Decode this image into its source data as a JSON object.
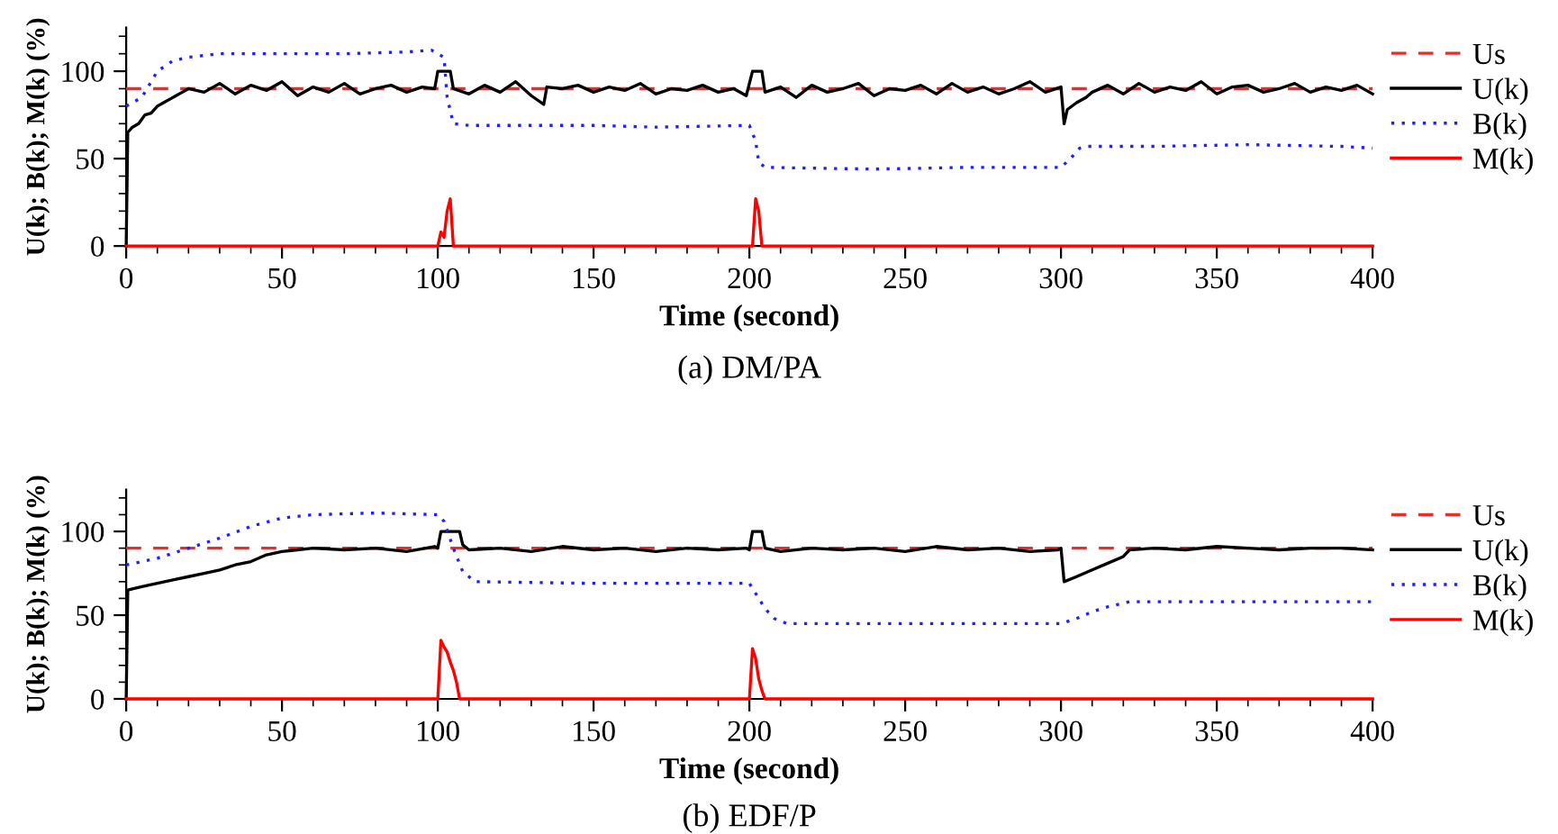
{
  "chart_data": [
    {
      "type": "line",
      "xlabel": "Time (second)",
      "ylabel": "U(k); B(k); M(k) (%)",
      "annotations": [
        "(a) DM/PA"
      ],
      "xlim": [
        0,
        400
      ],
      "ylim": [
        0,
        125
      ],
      "xticks": [
        0,
        {
          "value": 10,
          "label": null
        },
        {
          "value": 20,
          "label": null
        },
        {
          "value": 30,
          "label": null
        },
        {
          "value": 40,
          "label": null
        },
        50,
        {
          "value": 60,
          "label": null
        },
        {
          "value": 70,
          "label": null
        },
        {
          "value": 80,
          "label": null
        },
        {
          "value": 90,
          "label": null
        },
        100,
        {
          "value": 110,
          "label": null
        },
        {
          "value": 120,
          "label": null
        },
        {
          "value": 130,
          "label": null
        },
        {
          "value": 140,
          "label": null
        },
        150,
        {
          "value": 160,
          "label": null
        },
        {
          "value": 170,
          "label": null
        },
        {
          "value": 180,
          "label": null
        },
        {
          "value": 190,
          "label": null
        },
        200,
        {
          "value": 210,
          "label": null
        },
        {
          "value": 220,
          "label": null
        },
        {
          "value": 230,
          "label": null
        },
        {
          "value": 240,
          "label": null
        },
        250,
        {
          "value": 260,
          "label": null
        },
        {
          "value": 270,
          "label": null
        },
        {
          "value": 280,
          "label": null
        },
        {
          "value": 290,
          "label": null
        },
        300,
        {
          "value": 310,
          "label": null
        },
        {
          "value": 320,
          "label": null
        },
        {
          "value": 330,
          "label": null
        },
        {
          "value": 340,
          "label": null
        },
        350,
        {
          "value": 360,
          "label": null
        },
        {
          "value": 370,
          "label": null
        },
        {
          "value": 380,
          "label": null
        },
        {
          "value": 390,
          "label": null
        },
        400
      ],
      "yticks": [
        0,
        {
          "value": 10,
          "label": null
        },
        {
          "value": 20,
          "label": null
        },
        {
          "value": 30,
          "label": null
        },
        {
          "value": 40,
          "label": null
        },
        50,
        {
          "value": 60,
          "label": null
        },
        {
          "value": 70,
          "label": null
        },
        {
          "value": 80,
          "label": null
        },
        {
          "value": 90,
          "label": null
        },
        100,
        {
          "value": 110,
          "label": null
        },
        {
          "value": 120,
          "label": null
        }
      ],
      "grid": false,
      "legend": "right",
      "marker": "none",
      "series": [
        {
          "name": "Us",
          "color": "#e03030",
          "line_style": "dashed",
          "x": [
            0,
            400
          ],
          "values": [
            90,
            90
          ]
        },
        {
          "name": "U(k)",
          "color": "#000000",
          "line_style": "solid",
          "x": [
            0,
            0.5,
            2,
            4,
            6,
            8,
            10,
            12,
            14,
            16,
            18,
            20,
            25,
            30,
            35,
            40,
            45,
            50,
            55,
            60,
            65,
            70,
            75,
            80,
            85,
            90,
            95,
            99,
            100,
            101,
            104,
            105,
            110,
            115,
            120,
            125,
            130,
            134,
            135,
            140,
            145,
            150,
            155,
            160,
            165,
            170,
            175,
            180,
            185,
            190,
            195,
            199,
            200,
            201,
            203,
            204,
            205,
            210,
            215,
            220,
            225,
            230,
            235,
            240,
            245,
            250,
            255,
            260,
            265,
            270,
            275,
            280,
            285,
            290,
            295,
            300,
            301,
            302,
            305,
            308,
            310,
            315,
            320,
            325,
            330,
            335,
            340,
            345,
            350,
            355,
            360,
            365,
            370,
            375,
            380,
            385,
            390,
            395,
            400
          ],
          "values": [
            0,
            65,
            68,
            70,
            75,
            76,
            80,
            82,
            84,
            86,
            88,
            90,
            88,
            93,
            87,
            92,
            89,
            94,
            86,
            91,
            88,
            93,
            87,
            90,
            92,
            88,
            91,
            90,
            100,
            100,
            100,
            90,
            87,
            92,
            88,
            94,
            86,
            81,
            91,
            90,
            92,
            88,
            91,
            89,
            93,
            87,
            90,
            89,
            92,
            88,
            90,
            86,
            93,
            100,
            100,
            100,
            88,
            91,
            85,
            92,
            88,
            90,
            93,
            86,
            90,
            89,
            92,
            87,
            93,
            88,
            91,
            87,
            90,
            94,
            88,
            91,
            70,
            78,
            82,
            85,
            88,
            92,
            87,
            93,
            88,
            91,
            89,
            94,
            87,
            91,
            92,
            88,
            90,
            93,
            88,
            91,
            89,
            92,
            87
          ]
        },
        {
          "name": "B(k)",
          "color": "#2020ff",
          "line_style": "dotted",
          "x": [
            0,
            5,
            10,
            15,
            20,
            30,
            50,
            70,
            90,
            98,
            102,
            103,
            105,
            110,
            150,
            170,
            200,
            202,
            203,
            205,
            240,
            270,
            300,
            303,
            306,
            308,
            330,
            360,
            390,
            400
          ],
          "values": [
            80,
            85,
            100,
            106,
            108,
            110,
            110,
            110,
            111,
            112,
            108,
            85,
            70,
            69,
            69,
            68,
            69,
            60,
            48,
            45,
            44,
            45,
            45,
            50,
            56,
            57,
            57,
            58,
            57,
            56
          ]
        },
        {
          "name": "M(k)",
          "color": "#ff0000",
          "line_style": "solid",
          "x": [
            0,
            100,
            101,
            102,
            103,
            104,
            105,
            200,
            201,
            202,
            203,
            204,
            400
          ],
          "values": [
            0,
            0,
            8,
            5,
            20,
            27,
            0,
            0,
            0,
            27,
            20,
            0,
            0
          ]
        }
      ]
    },
    {
      "type": "line",
      "xlabel": "Time (second)",
      "ylabel": "U(k); B(k); M(k) (%)",
      "annotations": [
        "(b) EDF/P"
      ],
      "xlim": [
        0,
        400
      ],
      "ylim": [
        0,
        125
      ],
      "xticks": [
        0,
        {
          "value": 10,
          "label": null
        },
        {
          "value": 20,
          "label": null
        },
        {
          "value": 30,
          "label": null
        },
        {
          "value": 40,
          "label": null
        },
        50,
        {
          "value": 60,
          "label": null
        },
        {
          "value": 70,
          "label": null
        },
        {
          "value": 80,
          "label": null
        },
        {
          "value": 90,
          "label": null
        },
        100,
        {
          "value": 110,
          "label": null
        },
        {
          "value": 120,
          "label": null
        },
        {
          "value": 130,
          "label": null
        },
        {
          "value": 140,
          "label": null
        },
        150,
        {
          "value": 160,
          "label": null
        },
        {
          "value": 170,
          "label": null
        },
        {
          "value": 180,
          "label": null
        },
        {
          "value": 190,
          "label": null
        },
        200,
        {
          "value": 210,
          "label": null
        },
        {
          "value": 220,
          "label": null
        },
        {
          "value": 230,
          "label": null
        },
        {
          "value": 240,
          "label": null
        },
        250,
        {
          "value": 260,
          "label": null
        },
        {
          "value": 270,
          "label": null
        },
        {
          "value": 280,
          "label": null
        },
        {
          "value": 290,
          "label": null
        },
        300,
        {
          "value": 310,
          "label": null
        },
        {
          "value": 320,
          "label": null
        },
        {
          "value": 330,
          "label": null
        },
        {
          "value": 340,
          "label": null
        },
        350,
        {
          "value": 360,
          "label": null
        },
        {
          "value": 370,
          "label": null
        },
        {
          "value": 380,
          "label": null
        },
        {
          "value": 390,
          "label": null
        },
        400
      ],
      "yticks": [
        0,
        {
          "value": 10,
          "label": null
        },
        {
          "value": 20,
          "label": null
        },
        {
          "value": 30,
          "label": null
        },
        {
          "value": 40,
          "label": null
        },
        50,
        {
          "value": 60,
          "label": null
        },
        {
          "value": 70,
          "label": null
        },
        {
          "value": 80,
          "label": null
        },
        {
          "value": 90,
          "label": null
        },
        100,
        {
          "value": 110,
          "label": null
        },
        {
          "value": 120,
          "label": null
        }
      ],
      "grid": false,
      "legend": "right",
      "marker": "none",
      "series": [
        {
          "name": "Us",
          "color": "#e03030",
          "line_style": "dashed",
          "x": [
            0,
            400
          ],
          "values": [
            90,
            90
          ]
        },
        {
          "name": "U(k)",
          "color": "#000000",
          "line_style": "solid",
          "x": [
            0,
            0.5,
            5,
            10,
            15,
            20,
            25,
            30,
            35,
            40,
            45,
            50,
            55,
            60,
            70,
            80,
            90,
            99,
            100,
            101,
            107,
            108,
            110,
            120,
            130,
            140,
            150,
            160,
            170,
            180,
            190,
            199,
            200,
            201,
            204,
            205,
            210,
            220,
            230,
            240,
            250,
            260,
            270,
            280,
            290,
            299,
            300,
            301,
            305,
            310,
            315,
            320,
            322,
            330,
            340,
            350,
            360,
            370,
            380,
            390,
            400
          ],
          "values": [
            0,
            65,
            67,
            69,
            71,
            73,
            75,
            77,
            80,
            82,
            86,
            88,
            89,
            90,
            89,
            90,
            88,
            91,
            90,
            100,
            100,
            92,
            89,
            90,
            88,
            91,
            89,
            90,
            88,
            90,
            89,
            90,
            89,
            100,
            100,
            90,
            88,
            90,
            89,
            90,
            88,
            91,
            89,
            90,
            88,
            89,
            90,
            70,
            73,
            77,
            81,
            85,
            89,
            90,
            89,
            91,
            90,
            89,
            90,
            90,
            89
          ]
        },
        {
          "name": "B(k)",
          "color": "#2020ff",
          "line_style": "dotted",
          "x": [
            0,
            10,
            20,
            30,
            40,
            50,
            60,
            80,
            100,
            102,
            105,
            108,
            112,
            150,
            200,
            202,
            205,
            208,
            212,
            250,
            300,
            305,
            310,
            315,
            322,
            350,
            400
          ],
          "values": [
            80,
            84,
            90,
            96,
            103,
            108,
            110,
            111,
            110,
            106,
            90,
            76,
            70,
            69,
            69,
            63,
            54,
            48,
            45,
            45,
            45,
            48,
            52,
            55,
            58,
            58,
            58
          ]
        },
        {
          "name": "M(k)",
          "color": "#ff0000",
          "line_style": "solid",
          "x": [
            0,
            100,
            101,
            102,
            103,
            104,
            105,
            106,
            107,
            200,
            201,
            202,
            203,
            204,
            205,
            400
          ],
          "values": [
            0,
            0,
            35,
            31,
            28,
            22,
            17,
            10,
            0,
            0,
            30,
            24,
            12,
            5,
            0,
            0
          ]
        }
      ]
    }
  ]
}
